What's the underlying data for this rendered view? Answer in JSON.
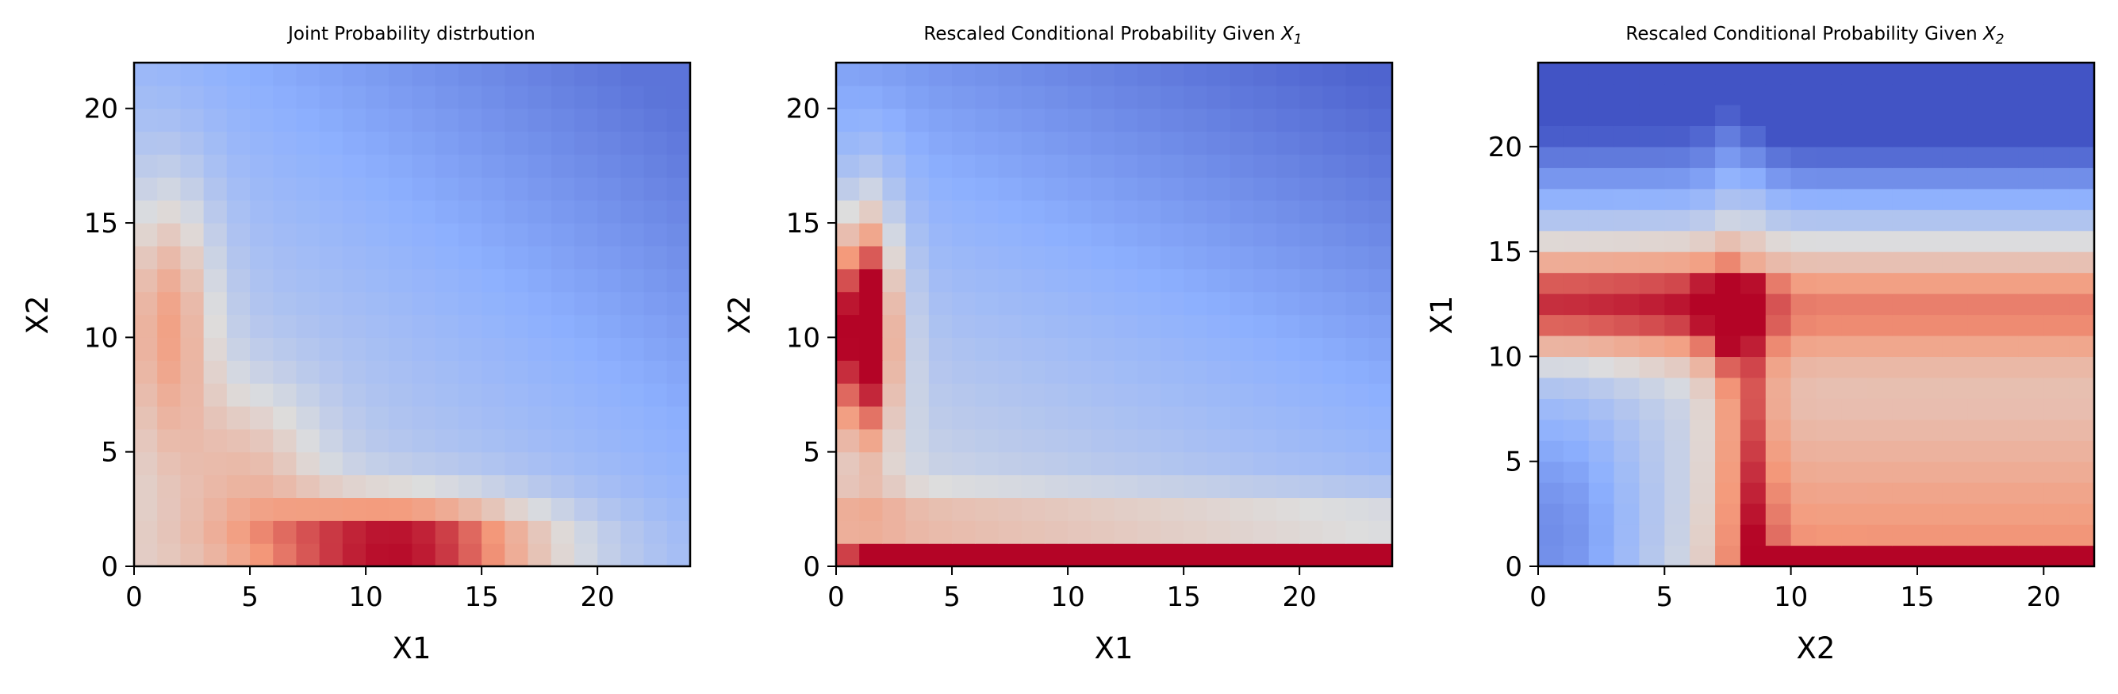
{
  "chart_data": [
    {
      "type": "heatmap",
      "colormap": "coolwarm",
      "title": "Joint Probability distrbution",
      "xlabel": "X1",
      "ylabel": "X2",
      "xlim": [
        0,
        24
      ],
      "ylim": [
        0,
        22
      ],
      "xticks": [
        "0",
        "5",
        "10",
        "15",
        "20"
      ],
      "yticks": [
        "0",
        "5",
        "10",
        "15",
        "20"
      ],
      "grid": false,
      "shape": {
        "cols": 24,
        "rows": 22
      },
      "description": "joint distribution: elevated ridge along X2≈0–3 peaking near X1≈10–12, and along X1≈0–2 near X2≈9–13; values fall off toward upper-right"
    },
    {
      "type": "heatmap",
      "colormap": "coolwarm",
      "title": "Rescaled Conditional Probability Given ",
      "title_var": "X",
      "title_sub": "1",
      "xlabel": "X1",
      "ylabel": "X2",
      "xlim": [
        0,
        24
      ],
      "ylim": [
        0,
        22
      ],
      "xticks": [
        "0",
        "5",
        "10",
        "15",
        "20"
      ],
      "yticks": [
        "0",
        "5",
        "10",
        "15",
        "20"
      ],
      "grid": false,
      "shape": {
        "cols": 24,
        "rows": 22
      },
      "description": "row X2=0 saturated red for X1≥1; column X1=0 red around X2≈8–15; rest low"
    },
    {
      "type": "heatmap",
      "colormap": "coolwarm",
      "title": "Rescaled Conditional Probability Given ",
      "title_var": "X",
      "title_sub": "2",
      "xlabel": "X2",
      "ylabel": "X1",
      "xlim": [
        0,
        22
      ],
      "ylim": [
        0,
        24
      ],
      "xticks": [
        "0",
        "5",
        "10",
        "15",
        "20"
      ],
      "yticks": [
        "0",
        "5",
        "10",
        "15",
        "20"
      ],
      "grid": false,
      "shape": {
        "cols": 22,
        "rows": 24
      },
      "description": "X1 row 0 saturated red for X2≥8; column X2≈7–8 red; band X1≈10–14 red for X2≤7; upper rows low"
    }
  ]
}
